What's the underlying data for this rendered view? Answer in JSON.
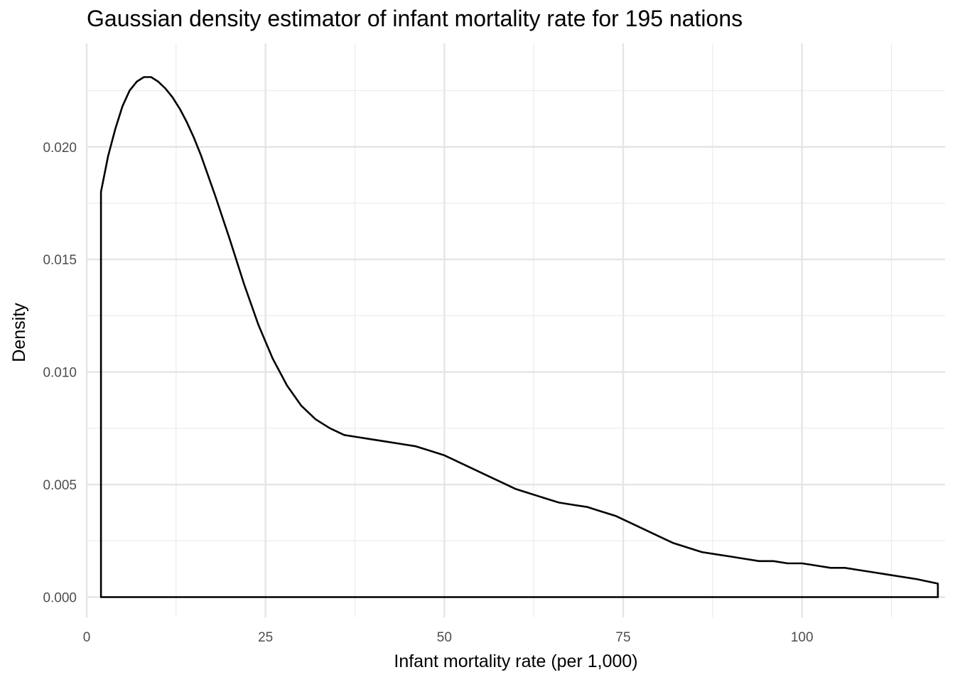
{
  "chart_data": {
    "type": "area",
    "title": "Gaussian density estimator of infant mortality rate for 195 nations",
    "xlabel": "Infant mortality rate (per 1,000)",
    "ylabel": "Density",
    "xlim": [
      0,
      120
    ],
    "ylim": [
      -0.0009,
      0.0246
    ],
    "x_ticks": [
      0,
      25,
      50,
      75,
      100
    ],
    "x_tick_labels": [
      "0",
      "25",
      "50",
      "75",
      "100"
    ],
    "y_ticks": [
      0.0,
      0.005,
      0.01,
      0.015,
      0.02
    ],
    "y_tick_labels": [
      "0.000",
      "0.005",
      "0.010",
      "0.015",
      "0.020"
    ],
    "grid": true,
    "fill": "none",
    "line_color": "#000000",
    "series": [
      {
        "x": [
          2,
          3,
          4,
          5,
          6,
          7,
          8,
          9,
          10,
          11,
          12,
          13,
          14,
          15,
          16,
          18,
          20,
          22,
          24,
          26,
          28,
          30,
          32,
          34,
          36,
          38,
          40,
          42,
          44,
          46,
          48,
          50,
          52,
          54,
          56,
          58,
          60,
          62,
          64,
          66,
          68,
          70,
          72,
          74,
          76,
          78,
          80,
          82,
          84,
          86,
          88,
          90,
          92,
          94,
          96,
          98,
          100,
          102,
          104,
          106,
          108,
          110,
          112,
          114,
          116,
          119
        ],
        "y": [
          0.018,
          0.0196,
          0.0208,
          0.0218,
          0.0225,
          0.0229,
          0.0231,
          0.0231,
          0.0229,
          0.0226,
          0.0222,
          0.0217,
          0.0211,
          0.0204,
          0.0196,
          0.0178,
          0.0159,
          0.0139,
          0.0121,
          0.0106,
          0.0094,
          0.0085,
          0.0079,
          0.0075,
          0.0072,
          0.0071,
          0.007,
          0.0069,
          0.0068,
          0.0067,
          0.0065,
          0.0063,
          0.006,
          0.0057,
          0.0054,
          0.0051,
          0.0048,
          0.0046,
          0.0044,
          0.0042,
          0.0041,
          0.004,
          0.0038,
          0.0036,
          0.0033,
          0.003,
          0.0027,
          0.0024,
          0.0022,
          0.002,
          0.0019,
          0.0018,
          0.0017,
          0.0016,
          0.0016,
          0.0015,
          0.0015,
          0.0014,
          0.0013,
          0.0013,
          0.0012,
          0.0011,
          0.001,
          0.0009,
          0.0008,
          0.0006
        ]
      }
    ]
  }
}
